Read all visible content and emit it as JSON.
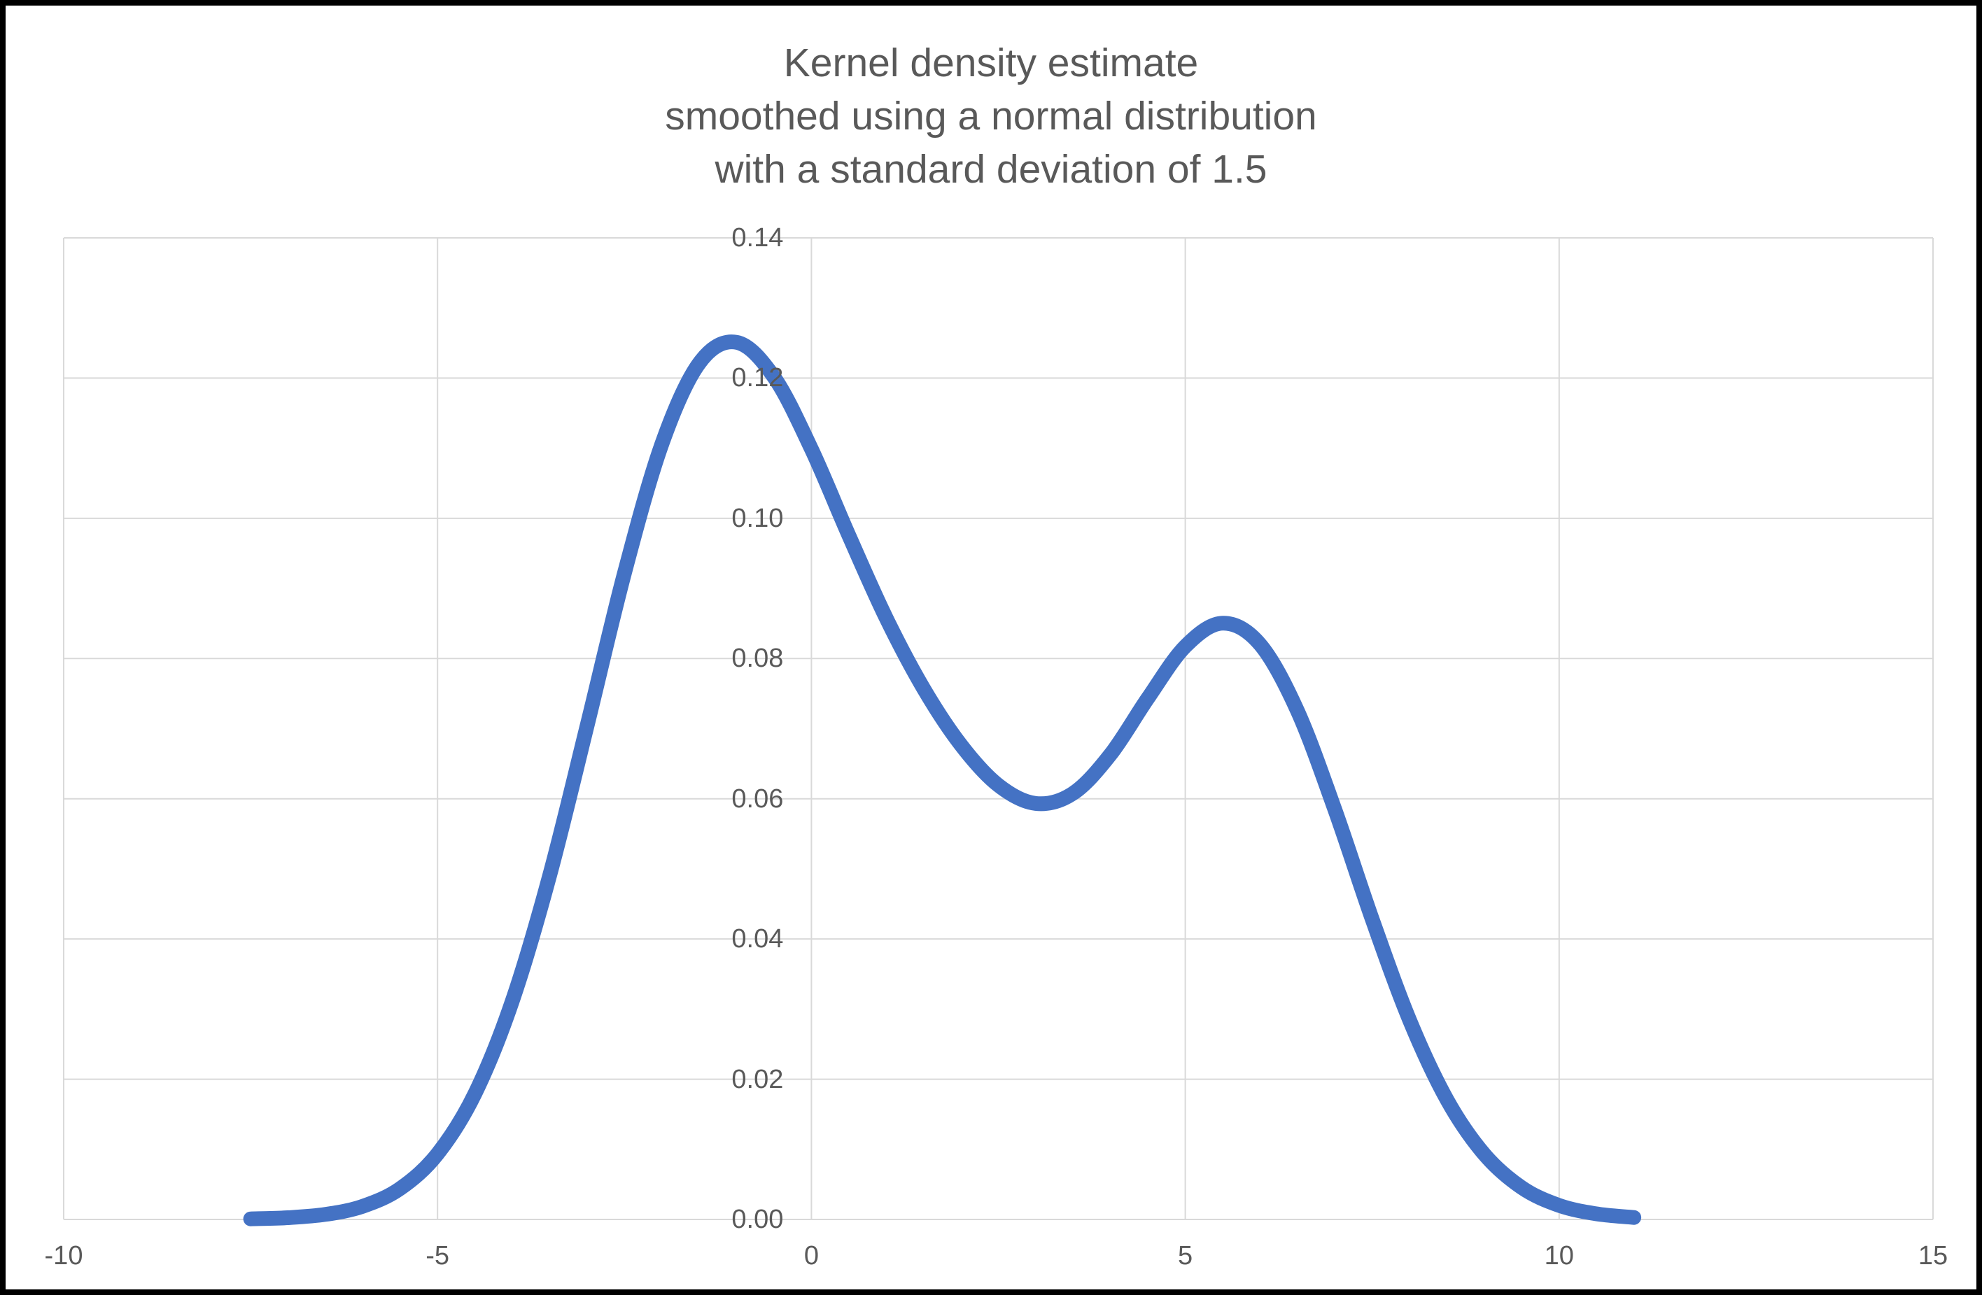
{
  "page": {
    "background_color": "#ffffff",
    "frame_color": "#000000"
  },
  "chart_data": {
    "type": "line",
    "title": "Kernel density estimate\nsmoothed using a normal distribution\nwith a standard deviation of 1.5",
    "title_color": "#595959",
    "label_color": "#595959",
    "grid": true,
    "grid_color": "#D9D9D9",
    "plot_background": "#ffffff",
    "legend": "none",
    "x_axis": {
      "min": -10,
      "max": 15,
      "tick_values": [
        -10,
        -5,
        0,
        5,
        10,
        15
      ],
      "tick_labels": [
        "-10",
        "-5",
        "0",
        "5",
        "10",
        "15"
      ]
    },
    "y_axis": {
      "min": 0,
      "max": 0.14,
      "tick_values": [
        0,
        0.02,
        0.04,
        0.06,
        0.08,
        0.1,
        0.12,
        0.14
      ],
      "tick_labels": [
        "0.00",
        "0.02",
        "0.04",
        "0.06",
        "0.08",
        "0.10",
        "0.12",
        "0.14"
      ]
    },
    "series": [
      {
        "name": "Kernel density estimate",
        "color": "#4472C4",
        "stroke_width": 21,
        "points": [
          [
            -7.5,
            8e-05
          ],
          [
            -7.0,
            0.00025
          ],
          [
            -6.5,
            0.00072
          ],
          [
            -6.0,
            0.00188
          ],
          [
            -5.5,
            0.00441
          ],
          [
            -5.0,
            0.00936
          ],
          [
            -4.5,
            0.01794
          ],
          [
            -4.0,
            0.03115
          ],
          [
            -3.5,
            0.0491
          ],
          [
            -3.0,
            0.07043
          ],
          [
            -2.5,
            0.0922
          ],
          [
            -2.0,
            0.11059
          ],
          [
            -1.5,
            0.12213
          ],
          [
            -1.0,
            0.1251
          ],
          [
            -0.5,
            0.12014
          ],
          [
            0.0,
            0.10988
          ],
          [
            0.5,
            0.09758
          ],
          [
            1.0,
            0.08579
          ],
          [
            1.5,
            0.07572
          ],
          [
            2.0,
            0.06767
          ],
          [
            2.5,
            0.06193
          ],
          [
            3.0,
            0.05933
          ],
          [
            3.5,
            0.06078
          ],
          [
            4.0,
            0.06633
          ],
          [
            4.5,
            0.07435
          ],
          [
            5.0,
            0.08173
          ],
          [
            5.5,
            0.08504
          ],
          [
            6.0,
            0.08202
          ],
          [
            6.5,
            0.07253
          ],
          [
            7.0,
            0.05846
          ],
          [
            7.5,
            0.04282
          ],
          [
            8.0,
            0.02843
          ],
          [
            8.5,
            0.01708
          ],
          [
            9.0,
            0.00928
          ],
          [
            9.5,
            0.00454
          ],
          [
            10.0,
            0.002
          ],
          [
            10.5,
            0.0008
          ],
          [
            11.0,
            0.00028
          ]
        ]
      }
    ],
    "key_features": {
      "curve_x_range": [
        -7.5,
        11.0
      ],
      "left_peak": {
        "x": -1.0,
        "y": 0.125
      },
      "valley": {
        "x": 3.0,
        "y": 0.059
      },
      "right_peak": {
        "x": 5.5,
        "y": 0.085
      }
    }
  }
}
